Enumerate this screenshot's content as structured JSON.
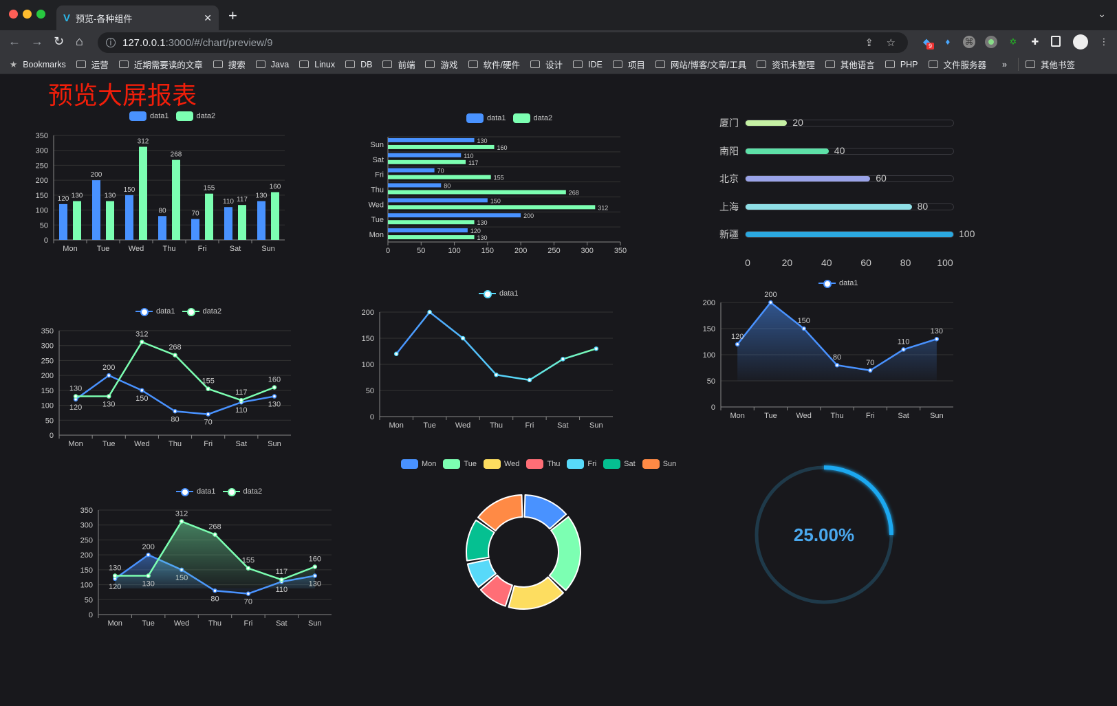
{
  "browser": {
    "tab_title": "预览-各种组件",
    "url_host": "127.0.0.1",
    "url_path": ":3000/#/chart/preview/9",
    "extension_badge": "9",
    "bookmarks_label": "Bookmarks",
    "bookmark_folders": [
      "运营",
      "近期需要读的文章",
      "搜索",
      "Java",
      "Linux",
      "DB",
      "前端",
      "游戏",
      "软件/硬件",
      "设计",
      "IDE",
      "项目",
      "网站/博客/文章/工具",
      "资讯未整理",
      "其他语言",
      "PHP",
      "文件服务器"
    ],
    "more": "»",
    "other_bookmarks": "其他书签"
  },
  "page": {
    "title": "预览大屏报表",
    "title_color": "#f01e0a",
    "background": "#18181c"
  },
  "colors": {
    "data1": "#4992ff",
    "data2": "#7cffb2",
    "smooth_line": "#58d9f9",
    "gauge_bg": "#1f3a4a",
    "gauge_fg": "#1fa8f0"
  },
  "chart_data": [
    {
      "id": "bar",
      "type": "bar",
      "categories": [
        "Mon",
        "Tue",
        "Wed",
        "Thu",
        "Fri",
        "Sat",
        "Sun"
      ],
      "series": [
        {
          "name": "data1",
          "values": [
            120,
            200,
            150,
            80,
            70,
            110,
            130
          ]
        },
        {
          "name": "data2",
          "values": [
            130,
            130,
            312,
            268,
            155,
            117,
            160
          ]
        }
      ],
      "ylim": [
        0,
        350
      ],
      "ystep": 50,
      "legend": "top",
      "grid": true
    },
    {
      "id": "hbar",
      "type": "bar",
      "orientation": "horizontal",
      "categories": [
        "Mon",
        "Tue",
        "Wed",
        "Thu",
        "Fri",
        "Sat",
        "Sun"
      ],
      "series": [
        {
          "name": "data1",
          "values": [
            120,
            200,
            150,
            80,
            70,
            110,
            130
          ]
        },
        {
          "name": "data2",
          "values": [
            130,
            130,
            312,
            268,
            155,
            117,
            160
          ]
        }
      ],
      "xlim": [
        0,
        350
      ],
      "xstep": 50,
      "legend": "top",
      "grid": true
    },
    {
      "id": "progress",
      "type": "bar",
      "orientation": "horizontal",
      "categories": [
        "厦门",
        "南阳",
        "北京",
        "上海",
        "新疆"
      ],
      "values": [
        20,
        40,
        60,
        80,
        100
      ],
      "colors": [
        "#c6f1a4",
        "#5ee0a8",
        "#9aa3e8",
        "#8fdfe6",
        "#2ba8e0"
      ],
      "xlim": [
        0,
        100
      ],
      "xticks": [
        0,
        20,
        40,
        60,
        80,
        100
      ]
    },
    {
      "id": "line2",
      "type": "line",
      "categories": [
        "Mon",
        "Tue",
        "Wed",
        "Thu",
        "Fri",
        "Sat",
        "Sun"
      ],
      "series": [
        {
          "name": "data1",
          "values": [
            120,
            200,
            150,
            80,
            70,
            110,
            130
          ]
        },
        {
          "name": "data2",
          "values": [
            130,
            130,
            312,
            268,
            155,
            117,
            160
          ]
        }
      ],
      "ylim": [
        0,
        350
      ],
      "ystep": 50,
      "legend": "top",
      "grid": true
    },
    {
      "id": "line1",
      "type": "line",
      "smooth": true,
      "categories": [
        "Mon",
        "Tue",
        "Wed",
        "Thu",
        "Fri",
        "Sat",
        "Sun"
      ],
      "series": [
        {
          "name": "data1",
          "values": [
            120,
            200,
            150,
            80,
            70,
            110,
            130
          ]
        }
      ],
      "ylim": [
        0,
        200
      ],
      "ystep": 50,
      "legend": "top",
      "grid": true
    },
    {
      "id": "area1",
      "type": "area",
      "categories": [
        "Mon",
        "Tue",
        "Wed",
        "Thu",
        "Fri",
        "Sat",
        "Sun"
      ],
      "series": [
        {
          "name": "data1",
          "values": [
            120,
            200,
            150,
            80,
            70,
            110,
            130
          ]
        }
      ],
      "ylim": [
        0,
        200
      ],
      "ystep": 50,
      "legend": "top",
      "grid": true
    },
    {
      "id": "area2",
      "type": "area",
      "categories": [
        "Mon",
        "Tue",
        "Wed",
        "Thu",
        "Fri",
        "Sat",
        "Sun"
      ],
      "series": [
        {
          "name": "data1",
          "values": [
            120,
            200,
            150,
            80,
            70,
            110,
            130
          ]
        },
        {
          "name": "data2",
          "values": [
            130,
            130,
            312,
            268,
            155,
            117,
            160
          ]
        }
      ],
      "ylim": [
        0,
        350
      ],
      "ystep": 50,
      "legend": "top",
      "grid": true
    },
    {
      "id": "pie",
      "type": "pie",
      "donut": true,
      "categories": [
        "Mon",
        "Tue",
        "Wed",
        "Thu",
        "Fri",
        "Sat",
        "Sun"
      ],
      "values": [
        120,
        200,
        150,
        80,
        70,
        110,
        130
      ],
      "colors": [
        "#4992ff",
        "#7cffb2",
        "#fddd60",
        "#ff6e76",
        "#58d9f9",
        "#05c091",
        "#ff8a45"
      ],
      "legend": "top"
    },
    {
      "id": "gauge",
      "type": "gauge",
      "value": 0.25,
      "label": "25.00%"
    }
  ]
}
